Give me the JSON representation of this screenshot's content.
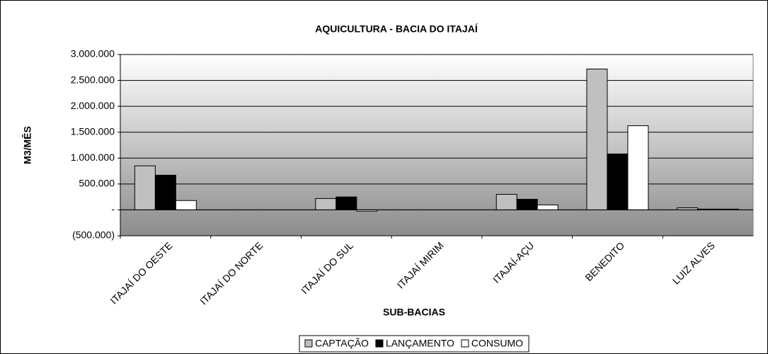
{
  "chart_data": {
    "type": "bar",
    "title": "AQUICULTURA - BACIA DO ITAJAÍ",
    "x_label": "SUB-BACIAS",
    "y_label": "M3/MÊS",
    "categories": [
      "ITAJAÍ DO OESTE",
      "ITAJAÍ DO NORTE",
      "ITAJAÍ DO SUL",
      "ITAJAÍ MIRIM",
      "ITAJAÍ-AÇU",
      "BENEDITO",
      "LUIZ ALVES"
    ],
    "series": [
      {
        "name": "CAPTAÇÃO",
        "color": "#c0c0c0",
        "values": [
          850000,
          0,
          220000,
          0,
          300000,
          2720000,
          40000
        ]
      },
      {
        "name": "LANÇAMENTO",
        "color": "#000000",
        "values": [
          670000,
          0,
          250000,
          0,
          205000,
          1080000,
          15000
        ]
      },
      {
        "name": "CONSUMO",
        "color": "#ffffff",
        "values": [
          180000,
          0,
          -25000,
          0,
          95000,
          1625000,
          15000
        ]
      }
    ],
    "ylim": [
      -500000,
      3000000
    ],
    "yticks": [
      {
        "value": -500000,
        "label": "(500.000)"
      },
      {
        "value": 0,
        "label": "-"
      },
      {
        "value": 500000,
        "label": "500.000"
      },
      {
        "value": 1000000,
        "label": "1.000.000"
      },
      {
        "value": 1500000,
        "label": "1.500.000"
      },
      {
        "value": 2000000,
        "label": "2.000.000"
      },
      {
        "value": 2500000,
        "label": "2.500.000"
      },
      {
        "value": 3000000,
        "label": "3.000.000"
      }
    ],
    "grid": true,
    "legend": "bottom"
  }
}
